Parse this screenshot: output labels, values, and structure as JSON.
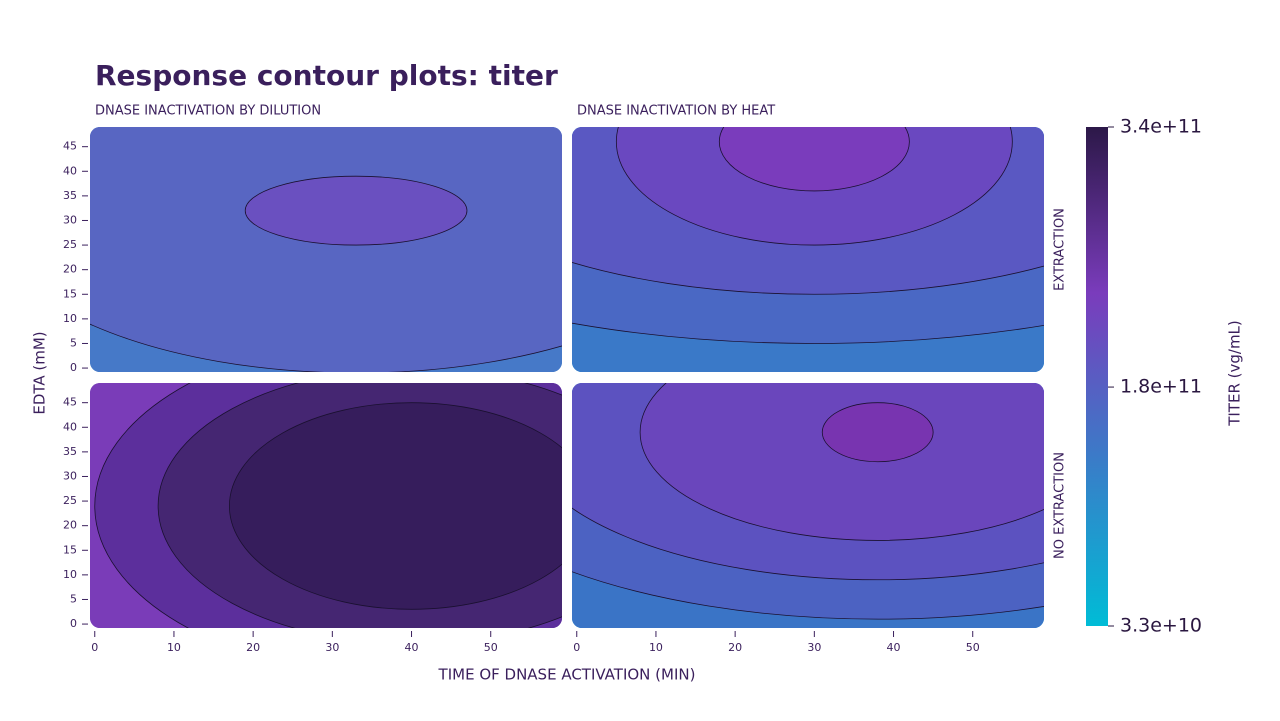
{
  "chart_data": {
    "type": "contour",
    "title": "Response contour plots: titer",
    "columns": [
      "DNASE INACTIVATION BY DILUTION",
      "DNASE INACTIVATION BY HEAT"
    ],
    "rows": [
      "EXTRACTION",
      "NO EXTRACTION"
    ],
    "x_label": "TIME OF DNASE ACTIVATION (MIN)",
    "y_label": "EDTA (mM)",
    "xlim": [
      -0.6,
      59
    ],
    "xticks": [
      0,
      10,
      20,
      30,
      40,
      50
    ],
    "ylim": [
      -0.8,
      49
    ],
    "yticks": [
      0,
      5,
      10,
      15,
      20,
      25,
      30,
      35,
      40,
      45
    ],
    "colorbar": {
      "label": "TITER (vg/mL)",
      "lim": [
        33000000000,
        340000000000
      ],
      "ticks": [
        {
          "value": 33000000000,
          "label": "3.3e+10"
        },
        {
          "value": 180000000000,
          "label": "1.8e+11"
        },
        {
          "value": 340000000000,
          "label": "3.4e+11"
        }
      ],
      "colors": [
        "#00bcd6",
        "#3a7cc8",
        "#7a3cbc",
        "#2c1848"
      ]
    }
  }
}
